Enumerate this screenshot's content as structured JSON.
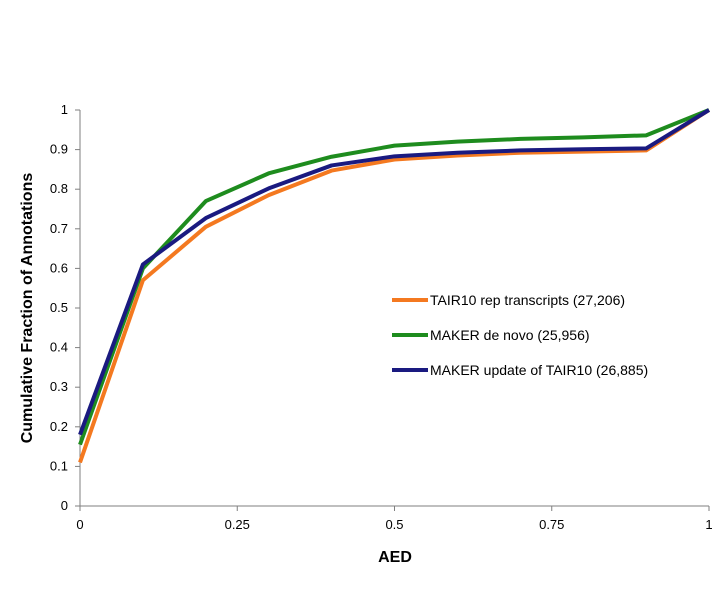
{
  "chart_data": {
    "type": "line",
    "title": "",
    "xlabel": "AED",
    "ylabel": "Cumulative Fraction of Annotations",
    "xlim": [
      0,
      1
    ],
    "ylim": [
      0,
      1
    ],
    "x_ticks": [
      "0",
      "0.25",
      "0.5",
      "0.75",
      "1"
    ],
    "x_tick_values": [
      0,
      0.25,
      0.5,
      0.75,
      1
    ],
    "y_ticks": [
      "0",
      "0.1",
      "0.2",
      "0.3",
      "0.4",
      "0.5",
      "0.6",
      "0.7",
      "0.8",
      "0.9",
      "1"
    ],
    "y_tick_values": [
      0,
      0.1,
      0.2,
      0.3,
      0.4,
      0.5,
      0.6,
      0.7,
      0.8,
      0.9,
      1
    ],
    "grid": false,
    "legend_position": "center-right",
    "x": [
      0,
      0.1,
      0.2,
      0.3,
      0.4,
      0.5,
      0.6,
      0.7,
      0.8,
      0.9,
      1
    ],
    "series": [
      {
        "name": "TAIR10 rep transcripts (27,206)",
        "color": "#f47920",
        "values": [
          0.11,
          0.57,
          0.705,
          0.785,
          0.847,
          0.875,
          0.885,
          0.892,
          0.895,
          0.898,
          1.0
        ]
      },
      {
        "name": "MAKER de novo (25,956)",
        "color": "#1e8c1e",
        "values": [
          0.155,
          0.6,
          0.77,
          0.84,
          0.882,
          0.91,
          0.92,
          0.927,
          0.931,
          0.936,
          1.0
        ]
      },
      {
        "name": "MAKER update of TAIR10 (26,885)",
        "color": "#1a1a80",
        "values": [
          0.18,
          0.61,
          0.727,
          0.802,
          0.86,
          0.883,
          0.892,
          0.898,
          0.901,
          0.903,
          1.0
        ]
      }
    ]
  }
}
